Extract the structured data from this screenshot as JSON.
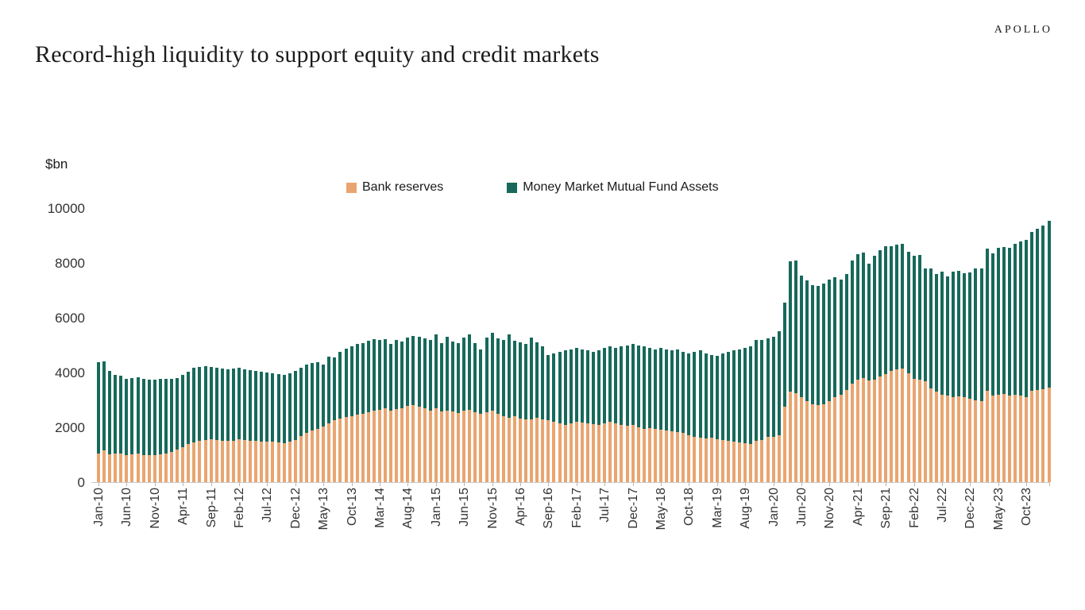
{
  "header": {
    "logo": "APOLLO"
  },
  "chart_data": {
    "type": "bar",
    "stacked": true,
    "title": "Record-high liquidity to support equity and credit markets",
    "ylabel": "$bn",
    "ylim": [
      0,
      10000
    ],
    "y_ticks": [
      0,
      2000,
      4000,
      6000,
      8000,
      10000
    ],
    "x_label_every": 5,
    "grid": false,
    "legend_position": "top",
    "x_tick_labels": [
      "Jan-10",
      "Jun-10",
      "Nov-10",
      "Apr-11",
      "Sep-11",
      "Feb-12",
      "Jul-12",
      "Dec-12",
      "May-13",
      "Oct-13",
      "Mar-14",
      "Aug-14",
      "Jan-15",
      "Jun-15",
      "Nov-15",
      "Apr-16",
      "Sep-16",
      "Feb-17",
      "Jul-17",
      "Dec-17",
      "May-18",
      "Oct-18",
      "Mar-19",
      "Aug-19",
      "Jan-20",
      "Jun-20",
      "Nov-20",
      "Apr-21",
      "Sep-21",
      "Feb-22",
      "Jul-22",
      "Dec-22",
      "May-23",
      "Oct-23"
    ],
    "categories": [
      "Jan-10",
      "Feb-10",
      "Mar-10",
      "Apr-10",
      "May-10",
      "Jun-10",
      "Jul-10",
      "Aug-10",
      "Sep-10",
      "Oct-10",
      "Nov-10",
      "Dec-10",
      "Jan-11",
      "Feb-11",
      "Mar-11",
      "Apr-11",
      "May-11",
      "Jun-11",
      "Jul-11",
      "Aug-11",
      "Sep-11",
      "Oct-11",
      "Nov-11",
      "Dec-11",
      "Jan-12",
      "Feb-12",
      "Mar-12",
      "Apr-12",
      "May-12",
      "Jun-12",
      "Jul-12",
      "Aug-12",
      "Sep-12",
      "Oct-12",
      "Nov-12",
      "Dec-12",
      "Jan-13",
      "Feb-13",
      "Mar-13",
      "Apr-13",
      "May-13",
      "Jun-13",
      "Jul-13",
      "Aug-13",
      "Sep-13",
      "Oct-13",
      "Nov-13",
      "Dec-13",
      "Jan-14",
      "Feb-14",
      "Mar-14",
      "Apr-14",
      "May-14",
      "Jun-14",
      "Jul-14",
      "Aug-14",
      "Sep-14",
      "Oct-14",
      "Nov-14",
      "Dec-14",
      "Jan-15",
      "Feb-15",
      "Mar-15",
      "Apr-15",
      "May-15",
      "Jun-15",
      "Jul-15",
      "Aug-15",
      "Sep-15",
      "Oct-15",
      "Nov-15",
      "Dec-15",
      "Jan-16",
      "Feb-16",
      "Mar-16",
      "Apr-16",
      "May-16",
      "Jun-16",
      "Jul-16",
      "Aug-16",
      "Sep-16",
      "Oct-16",
      "Nov-16",
      "Dec-16",
      "Jan-17",
      "Feb-17",
      "Mar-17",
      "Apr-17",
      "May-17",
      "Jun-17",
      "Jul-17",
      "Aug-17",
      "Sep-17",
      "Oct-17",
      "Nov-17",
      "Dec-17",
      "Jan-18",
      "Feb-18",
      "Mar-18",
      "Apr-18",
      "May-18",
      "Jun-18",
      "Jul-18",
      "Aug-18",
      "Sep-18",
      "Oct-18",
      "Nov-18",
      "Dec-18",
      "Jan-19",
      "Feb-19",
      "Mar-19",
      "Apr-19",
      "May-19",
      "Jun-19",
      "Jul-19",
      "Aug-19",
      "Sep-19",
      "Oct-19",
      "Nov-19",
      "Dec-19",
      "Jan-20",
      "Feb-20",
      "Mar-20",
      "Apr-20",
      "May-20",
      "Jun-20",
      "Jul-20",
      "Aug-20",
      "Sep-20",
      "Oct-20",
      "Nov-20",
      "Dec-20",
      "Jan-21",
      "Feb-21",
      "Mar-21",
      "Apr-21",
      "May-21",
      "Jun-21",
      "Jul-21",
      "Aug-21",
      "Sep-21",
      "Oct-21",
      "Nov-21",
      "Dec-21",
      "Jan-22",
      "Feb-22",
      "Mar-22",
      "Apr-22",
      "May-22",
      "Jun-22",
      "Jul-22",
      "Aug-22",
      "Sep-22",
      "Oct-22",
      "Nov-22",
      "Dec-22",
      "Jan-23",
      "Feb-23",
      "Mar-23",
      "Apr-23",
      "May-23",
      "Jun-23",
      "Jul-23",
      "Aug-23",
      "Sep-23",
      "Oct-23",
      "Nov-23",
      "Dec-23",
      "Jan-24",
      "Feb-24"
    ],
    "series": [
      {
        "name": "Bank reserves",
        "color": "#E9A570",
        "values": [
          1050,
          1150,
          1020,
          1050,
          1030,
          1000,
          1010,
          1030,
          990,
          980,
          1000,
          1020,
          1030,
          1100,
          1190,
          1290,
          1380,
          1450,
          1500,
          1550,
          1560,
          1540,
          1520,
          1500,
          1520,
          1560,
          1540,
          1520,
          1500,
          1490,
          1480,
          1470,
          1450,
          1430,
          1480,
          1540,
          1680,
          1790,
          1880,
          1950,
          2030,
          2150,
          2250,
          2320,
          2380,
          2420,
          2470,
          2500,
          2550,
          2600,
          2650,
          2700,
          2620,
          2680,
          2700,
          2790,
          2800,
          2750,
          2700,
          2620,
          2700,
          2580,
          2620,
          2570,
          2530,
          2600,
          2650,
          2560,
          2480,
          2550,
          2600,
          2500,
          2400,
          2350,
          2400,
          2330,
          2280,
          2300,
          2350,
          2300,
          2250,
          2200,
          2150,
          2100,
          2150,
          2200,
          2180,
          2150,
          2120,
          2100,
          2150,
          2200,
          2150,
          2100,
          2050,
          2100,
          2000,
          1950,
          1980,
          1930,
          1900,
          1880,
          1850,
          1830,
          1800,
          1700,
          1650,
          1620,
          1600,
          1620,
          1580,
          1550,
          1500,
          1480,
          1450,
          1430,
          1400,
          1500,
          1550,
          1650,
          1660,
          1700,
          2750,
          3300,
          3250,
          3100,
          2950,
          2850,
          2800,
          2850,
          2950,
          3100,
          3200,
          3350,
          3600,
          3750,
          3800,
          3700,
          3750,
          3850,
          3950,
          4050,
          4120,
          4150,
          3980,
          3780,
          3730,
          3680,
          3410,
          3300,
          3200,
          3150,
          3100,
          3120,
          3090,
          3030,
          2990,
          2960,
          3320,
          3150,
          3200,
          3220,
          3150,
          3200,
          3150,
          3100,
          3320,
          3370,
          3390,
          3440
        ]
      },
      {
        "name": "Money Market Mutual Fund Assets",
        "color": "#17695B",
        "values": [
          3340,
          3260,
          3050,
          2870,
          2850,
          2760,
          2790,
          2790,
          2770,
          2760,
          2750,
          2760,
          2725,
          2675,
          2605,
          2630,
          2660,
          2715,
          2715,
          2695,
          2655,
          2645,
          2625,
          2615,
          2625,
          2605,
          2575,
          2565,
          2550,
          2530,
          2510,
          2500,
          2500,
          2490,
          2490,
          2530,
          2485,
          2490,
          2460,
          2430,
          2255,
          2420,
          2305,
          2445,
          2480,
          2540,
          2565,
          2585,
          2600,
          2610,
          2530,
          2510,
          2415,
          2500,
          2435,
          2490,
          2545,
          2560,
          2550,
          2560,
          2705,
          2505,
          2690,
          2565,
          2555,
          2680,
          2755,
          2525,
          2365,
          2730,
          2840,
          2750,
          2780,
          3030,
          2750,
          2770,
          2770,
          2980,
          2750,
          2650,
          2400,
          2500,
          2600,
          2700,
          2700,
          2700,
          2670,
          2650,
          2630,
          2700,
          2750,
          2750,
          2750,
          2850,
          2950,
          2950,
          3000,
          3000,
          2920,
          2920,
          3000,
          2970,
          2950,
          3020,
          2950,
          3000,
          3100,
          3180,
          3100,
          3030,
          3020,
          3150,
          3250,
          3320,
          3400,
          3470,
          3550,
          3680,
          3650,
          3600,
          3640,
          3800,
          3800,
          4750,
          4850,
          4450,
          4400,
          4350,
          4350,
          4400,
          4450,
          4370,
          4200,
          4240,
          4480,
          4570,
          4570,
          4280,
          4520,
          4610,
          4660,
          4550,
          4540,
          4560,
          4440,
          4490,
          4560,
          4110,
          4400,
          4300,
          4470,
          4350,
          4595,
          4600,
          4530,
          4610,
          4800,
          4850,
          5210,
          5190,
          5360,
          5370,
          5410,
          5510,
          5640,
          5755,
          5825,
          5870,
          5975,
          6110
        ]
      }
    ]
  }
}
